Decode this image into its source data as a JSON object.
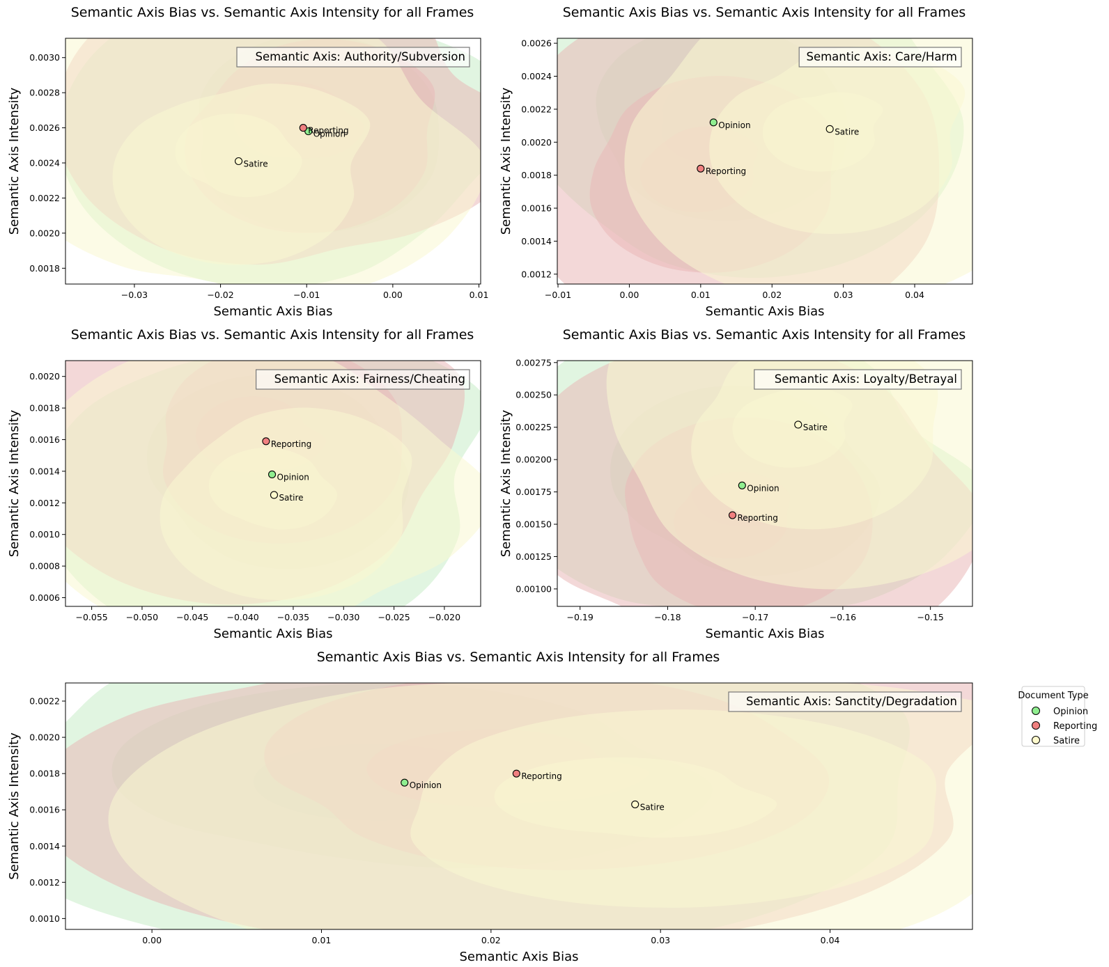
{
  "colors": {
    "Opinion": "#90ee90",
    "Reporting": "#f08080",
    "Satire": "#fffacd",
    "opinion_fill": "#c8ecc8",
    "reporting_fill": "#eab8b8",
    "satire_fill": "#faf7d2"
  },
  "legend": {
    "title": "Document Type",
    "entries": [
      "Opinion",
      "Reporting",
      "Satire"
    ]
  },
  "chart_data": [
    {
      "type": "scatter",
      "title": "Semantic Axis Bias vs. Semantic Axis Intensity for all Frames",
      "annotation": "Semantic Axis: Authority/Subversion",
      "xlabel": "Semantic Axis Bias",
      "ylabel": "Semantic Axis Intensity",
      "xlim": [
        -0.038,
        0.0102
      ],
      "ylim": [
        0.00171,
        0.00311
      ],
      "xticks": [
        -0.03,
        -0.02,
        -0.01,
        0.0,
        0.01
      ],
      "xtick_labels": [
        "−0.03",
        "−0.02",
        "−0.01",
        "0.00",
        "0.01"
      ],
      "yticks": [
        0.0018,
        0.002,
        0.0022,
        0.0024,
        0.0026,
        0.0028,
        0.003
      ],
      "ytick_labels": [
        "0.0018",
        "0.0020",
        "0.0022",
        "0.0024",
        "0.0026",
        "0.0028",
        "0.0030"
      ],
      "points": [
        {
          "label": "Opinion",
          "x": -0.0098,
          "y": 0.00258
        },
        {
          "label": "Reporting",
          "x": -0.0104,
          "y": 0.0026
        },
        {
          "label": "Satire",
          "x": -0.0179,
          "y": 0.00241
        }
      ]
    },
    {
      "type": "scatter",
      "title": "Semantic Axis Bias vs. Semantic Axis Intensity for all Frames",
      "annotation": "Semantic Axis: Care/Harm",
      "xlabel": "Semantic Axis Bias",
      "ylabel": "Semantic Axis Intensity",
      "xlim": [
        -0.0101,
        0.0481
      ],
      "ylim": [
        0.00114,
        0.00263
      ],
      "xticks": [
        -0.01,
        0.0,
        0.01,
        0.02,
        0.03,
        0.04
      ],
      "xtick_labels": [
        "−0.01",
        "0.00",
        "0.01",
        "0.02",
        "0.03",
        "0.04"
      ],
      "yticks": [
        0.0012,
        0.0014,
        0.0016,
        0.0018,
        0.002,
        0.0022,
        0.0024,
        0.0026
      ],
      "ytick_labels": [
        "0.0012",
        "0.0014",
        "0.0016",
        "0.0018",
        "0.0020",
        "0.0022",
        "0.0024",
        "0.0026"
      ],
      "points": [
        {
          "label": "Opinion",
          "x": 0.0118,
          "y": 0.00212
        },
        {
          "label": "Reporting",
          "x": 0.01,
          "y": 0.00184
        },
        {
          "label": "Satire",
          "x": 0.0281,
          "y": 0.00208
        }
      ]
    },
    {
      "type": "scatter",
      "title": "Semantic Axis Bias vs. Semantic Axis Intensity for all Frames",
      "annotation": "Semantic Axis: Fairness/Cheating",
      "xlabel": "Semantic Axis Bias",
      "ylabel": "Semantic Axis Intensity",
      "xlim": [
        -0.0576,
        -0.0164
      ],
      "ylim": [
        0.000545,
        0.0021
      ],
      "xticks": [
        -0.055,
        -0.05,
        -0.045,
        -0.04,
        -0.035,
        -0.03,
        -0.025,
        -0.02
      ],
      "xtick_labels": [
        "−0.055",
        "−0.050",
        "−0.045",
        "−0.040",
        "−0.035",
        "−0.030",
        "−0.025",
        "−0.020"
      ],
      "yticks": [
        0.0006,
        0.0008,
        0.001,
        0.0012,
        0.0014,
        0.0016,
        0.0018,
        0.002
      ],
      "ytick_labels": [
        "0.0006",
        "0.0008",
        "0.0010",
        "0.0012",
        "0.0014",
        "0.0016",
        "0.0018",
        "0.0020"
      ],
      "points": [
        {
          "label": "Opinion",
          "x": -0.0371,
          "y": 0.00138
        },
        {
          "label": "Reporting",
          "x": -0.0377,
          "y": 0.00159
        },
        {
          "label": "Satire",
          "x": -0.0369,
          "y": 0.00125
        }
      ]
    },
    {
      "type": "scatter",
      "title": "Semantic Axis Bias vs. Semantic Axis Intensity for all Frames",
      "annotation": "Semantic Axis: Loyalty/Betrayal",
      "xlabel": "Semantic Axis Bias",
      "ylabel": "Semantic Axis Intensity",
      "xlim": [
        -0.1926,
        -0.1452
      ],
      "ylim": [
        0.000865,
        0.002765
      ],
      "xticks": [
        -0.19,
        -0.18,
        -0.17,
        -0.16,
        -0.15
      ],
      "xtick_labels": [
        "−0.19",
        "−0.18",
        "−0.17",
        "−0.16",
        "−0.15"
      ],
      "yticks": [
        0.001,
        0.00125,
        0.0015,
        0.00175,
        0.002,
        0.00225,
        0.0025,
        0.00275
      ],
      "ytick_labels": [
        "0.00100",
        "0.00125",
        "0.00150",
        "0.00175",
        "0.00200",
        "0.00225",
        "0.00250",
        "0.00275"
      ],
      "points": [
        {
          "label": "Opinion",
          "x": -0.1715,
          "y": 0.0018
        },
        {
          "label": "Reporting",
          "x": -0.1726,
          "y": 0.00157
        },
        {
          "label": "Satire",
          "x": -0.1651,
          "y": 0.00227
        }
      ]
    },
    {
      "type": "scatter",
      "title": "Semantic Axis Bias vs. Semantic Axis Intensity for all Frames",
      "annotation": "Semantic Axis: Sanctity/Degradation",
      "xlabel": "Semantic Axis Bias",
      "ylabel": "Semantic Axis Intensity",
      "xlim": [
        -0.0051,
        0.0484
      ],
      "ylim": [
        0.00094,
        0.0023
      ],
      "xticks": [
        0.0,
        0.01,
        0.02,
        0.03,
        0.04
      ],
      "xtick_labels": [
        "0.00",
        "0.01",
        "0.02",
        "0.03",
        "0.04"
      ],
      "yticks": [
        0.001,
        0.0012,
        0.0014,
        0.0016,
        0.0018,
        0.002,
        0.0022
      ],
      "ytick_labels": [
        "0.0010",
        "0.0012",
        "0.0014",
        "0.0016",
        "0.0018",
        "0.0020",
        "0.0022"
      ],
      "points": [
        {
          "label": "Opinion",
          "x": 0.0149,
          "y": 0.00175
        },
        {
          "label": "Reporting",
          "x": 0.0215,
          "y": 0.0018
        },
        {
          "label": "Satire",
          "x": 0.0285,
          "y": 0.00163
        }
      ]
    }
  ]
}
